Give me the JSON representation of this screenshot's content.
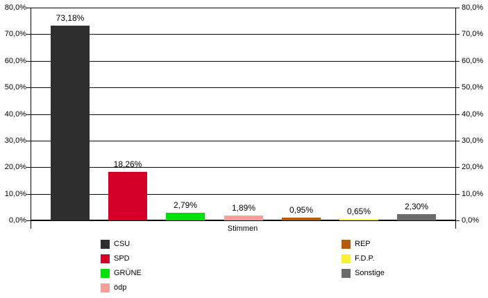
{
  "chart_data": {
    "type": "bar",
    "title": "",
    "xlabel": "Stimmen",
    "categories": [
      "CSU",
      "SPD",
      "GRÜNE",
      "ödp",
      "REP",
      "F.D.P.",
      "Sonstige"
    ],
    "values": [
      73.18,
      18.26,
      2.79,
      1.89,
      0.95,
      0.65,
      2.3
    ],
    "value_labels": [
      "73,18%",
      "18,26%",
      "2,79%",
      "1,89%",
      "0,95%",
      "0,65%",
      "2,30%"
    ],
    "colors": [
      "#2e2e2e",
      "#d4002a",
      "#00e10a",
      "#f99e9b",
      "#b45c09",
      "#faf230",
      "#6b6b6b"
    ],
    "ylim": [
      0,
      80
    ],
    "grid": true,
    "y_tick_labels": [
      "80,0%",
      "70,0%",
      "60,0%",
      "50,0%",
      "40,0%",
      "30,0%",
      "20,0%",
      "10,0%",
      "0,0%"
    ],
    "axis_sides": [
      "left",
      "right"
    ],
    "legend_position": "bottom",
    "legend_columns": [
      [
        "CSU",
        "SPD",
        "GRÜNE",
        "ödp"
      ],
      [
        "REP",
        "F.D.P.",
        "Sonstige"
      ]
    ]
  }
}
